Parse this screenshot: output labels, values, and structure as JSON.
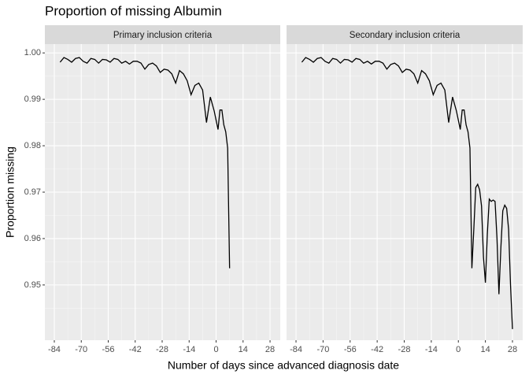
{
  "title": "Proportion of missing Albumin",
  "x_label": "Number of days since advanced diagnosis date",
  "y_label": "Proportion missing",
  "chart_data": [
    {
      "type": "line",
      "strip": "Primary inclusion criteria",
      "color": "#000000",
      "grid": true,
      "x": [
        -81,
        -79,
        -77,
        -75,
        -73,
        -71,
        -69,
        -67,
        -65,
        -63,
        -61,
        -59,
        -57,
        -55,
        -53,
        -51,
        -49,
        -47,
        -45,
        -43,
        -41,
        -39,
        -37,
        -35,
        -33,
        -31,
        -29,
        -27,
        -25,
        -23,
        -21,
        -19,
        -17,
        -15,
        -13,
        -11,
        -9,
        -7,
        -5,
        -3,
        -1,
        0,
        1,
        2,
        3,
        4,
        5,
        6,
        7
      ],
      "values": [
        0.998,
        0.999,
        0.9986,
        0.998,
        0.9988,
        0.999,
        0.9982,
        0.9978,
        0.9988,
        0.9986,
        0.9978,
        0.9986,
        0.9985,
        0.998,
        0.9988,
        0.9986,
        0.9978,
        0.9982,
        0.9976,
        0.9982,
        0.9982,
        0.9978,
        0.9965,
        0.9975,
        0.9978,
        0.9972,
        0.9958,
        0.9965,
        0.9963,
        0.9955,
        0.9935,
        0.9962,
        0.9955,
        0.994,
        0.991,
        0.993,
        0.9935,
        0.992,
        0.985,
        0.9905,
        0.9875,
        0.9855,
        0.9835,
        0.9877,
        0.9877,
        0.9845,
        0.983,
        0.9795,
        0.9536
      ],
      "xlim": [
        -88.9,
        33.3
      ],
      "ylim": [
        0.9381,
        1.0019
      ],
      "xticks": [
        -84,
        -70,
        -56,
        -42,
        -28,
        -14,
        0,
        14,
        28
      ],
      "yticks": [
        0.95,
        0.96,
        0.97,
        0.98,
        0.99,
        {
          "value": 1,
          "label": "1.00"
        }
      ]
    },
    {
      "type": "line",
      "strip": "Secondary inclusion criteria",
      "color": "#000000",
      "grid": true,
      "x": [
        -81,
        -79,
        -77,
        -75,
        -73,
        -71,
        -69,
        -67,
        -65,
        -63,
        -61,
        -59,
        -57,
        -55,
        -53,
        -51,
        -49,
        -47,
        -45,
        -43,
        -41,
        -39,
        -37,
        -35,
        -33,
        -31,
        -29,
        -27,
        -25,
        -23,
        -21,
        -19,
        -17,
        -15,
        -13,
        -11,
        -9,
        -7,
        -5,
        -3,
        -1,
        0,
        1,
        2,
        3,
        4,
        5,
        6,
        7,
        8,
        9,
        10,
        11,
        12,
        13,
        14,
        15,
        16,
        17,
        18,
        19,
        20,
        21,
        22,
        23,
        24,
        25,
        26,
        27,
        28
      ],
      "values": [
        0.998,
        0.999,
        0.9986,
        0.998,
        0.9988,
        0.999,
        0.9982,
        0.9978,
        0.9988,
        0.9986,
        0.9978,
        0.9986,
        0.9985,
        0.998,
        0.9988,
        0.9986,
        0.9978,
        0.9982,
        0.9976,
        0.9982,
        0.9982,
        0.9978,
        0.9965,
        0.9975,
        0.9978,
        0.9972,
        0.9958,
        0.9965,
        0.9963,
        0.9955,
        0.9935,
        0.9962,
        0.9955,
        0.994,
        0.991,
        0.993,
        0.9935,
        0.992,
        0.985,
        0.9905,
        0.9875,
        0.9855,
        0.9835,
        0.9877,
        0.9877,
        0.9845,
        0.983,
        0.9795,
        0.9536,
        0.962,
        0.971,
        0.9717,
        0.9705,
        0.967,
        0.956,
        0.9505,
        0.961,
        0.9685,
        0.968,
        0.9683,
        0.968,
        0.96,
        0.948,
        0.958,
        0.966,
        0.9672,
        0.9665,
        0.962,
        0.95,
        0.9405
      ],
      "xlim": [
        -88.9,
        33.3
      ],
      "ylim": [
        0.9381,
        1.0019
      ],
      "xticks": [
        -84,
        -70,
        -56,
        -42,
        -28,
        -14,
        0,
        14,
        28
      ],
      "yticks": [
        0.95,
        0.96,
        0.97,
        0.98,
        0.99,
        {
          "value": 1,
          "label": "1.00"
        }
      ]
    }
  ]
}
